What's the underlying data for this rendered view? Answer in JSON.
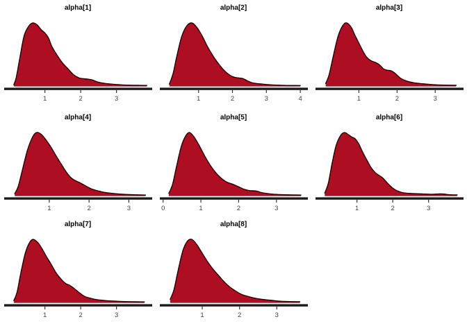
{
  "figure": {
    "background": "#ffffff"
  },
  "chart_data": {
    "type": "area",
    "subtype": "density-grid",
    "description": "Grid of 8 posterior density plots (MCMC parameter estimates), right-skewed unimodal distributions peaking near 0.7",
    "layout": {
      "grid_rows": 3,
      "grid_cols": 3,
      "empty_cells": [
        "row3-col3"
      ],
      "legend": "none",
      "grid_lines": "off",
      "y_axis": "none"
    },
    "style": {
      "fill_color": "#AE0E22",
      "outline_color": "#000000",
      "axis_bar_color": "#1A1A1A",
      "tick_color": "#333333",
      "tick_label_color": "#404040",
      "title_color": "#000000"
    },
    "panels": [
      {
        "title": "alpha[1]",
        "ticks": [
          1,
          2,
          3
        ],
        "axis_min": -0.1,
        "axis_max": 3.9,
        "curve": [
          [
            0.13,
            0.02
          ],
          [
            0.2,
            0.14
          ],
          [
            0.3,
            0.45
          ],
          [
            0.42,
            0.8
          ],
          [
            0.55,
            0.95
          ],
          [
            0.66,
            1.0
          ],
          [
            0.78,
            0.97
          ],
          [
            0.9,
            0.89
          ],
          [
            1.0,
            0.84
          ],
          [
            1.1,
            0.76
          ],
          [
            1.2,
            0.62
          ],
          [
            1.35,
            0.48
          ],
          [
            1.5,
            0.36
          ],
          [
            1.65,
            0.27
          ],
          [
            1.8,
            0.18
          ],
          [
            1.95,
            0.13
          ],
          [
            2.1,
            0.115
          ],
          [
            2.3,
            0.1
          ],
          [
            2.5,
            0.06
          ],
          [
            2.7,
            0.04
          ],
          [
            3.0,
            0.025
          ],
          [
            3.3,
            0.015
          ],
          [
            3.6,
            0.012
          ],
          [
            3.85,
            0.01
          ]
        ]
      },
      {
        "title": "alpha[2]",
        "ticks": [
          1,
          2,
          3,
          4
        ],
        "axis_min": -0.1,
        "axis_max": 4.12,
        "curve": [
          [
            0.14,
            0.03
          ],
          [
            0.25,
            0.2
          ],
          [
            0.35,
            0.45
          ],
          [
            0.5,
            0.78
          ],
          [
            0.65,
            0.95
          ],
          [
            0.8,
            1.0
          ],
          [
            0.95,
            0.93
          ],
          [
            1.1,
            0.8
          ],
          [
            1.25,
            0.64
          ],
          [
            1.4,
            0.5
          ],
          [
            1.55,
            0.38
          ],
          [
            1.7,
            0.28
          ],
          [
            1.85,
            0.2
          ],
          [
            2.0,
            0.15
          ],
          [
            2.15,
            0.13
          ],
          [
            2.3,
            0.12
          ],
          [
            2.45,
            0.08
          ],
          [
            2.6,
            0.05
          ],
          [
            2.8,
            0.035
          ],
          [
            3.0,
            0.025
          ],
          [
            3.3,
            0.015
          ],
          [
            3.6,
            0.01
          ],
          [
            4.0,
            0.008
          ]
        ]
      },
      {
        "title": "alpha[3]",
        "ticks": [
          1,
          2,
          3
        ],
        "axis_min": -0.1,
        "axis_max": 3.65,
        "curve": [
          [
            0.13,
            0.04
          ],
          [
            0.22,
            0.18
          ],
          [
            0.32,
            0.45
          ],
          [
            0.45,
            0.78
          ],
          [
            0.58,
            0.96
          ],
          [
            0.68,
            1.0
          ],
          [
            0.8,
            0.93
          ],
          [
            0.9,
            0.8
          ],
          [
            1.0,
            0.68
          ],
          [
            1.1,
            0.56
          ],
          [
            1.2,
            0.46
          ],
          [
            1.32,
            0.4
          ],
          [
            1.45,
            0.37
          ],
          [
            1.55,
            0.33
          ],
          [
            1.65,
            0.27
          ],
          [
            1.75,
            0.25
          ],
          [
            1.85,
            0.24
          ],
          [
            1.95,
            0.2
          ],
          [
            2.1,
            0.12
          ],
          [
            2.25,
            0.08
          ],
          [
            2.45,
            0.05
          ],
          [
            2.7,
            0.035
          ],
          [
            3.0,
            0.02
          ],
          [
            3.25,
            0.015
          ],
          [
            3.55,
            0.012
          ]
        ]
      },
      {
        "title": "alpha[4]",
        "ticks": [
          1,
          2,
          3
        ],
        "axis_min": -0.1,
        "axis_max": 3.5,
        "curve": [
          [
            0.13,
            0.03
          ],
          [
            0.22,
            0.15
          ],
          [
            0.32,
            0.4
          ],
          [
            0.45,
            0.72
          ],
          [
            0.58,
            0.93
          ],
          [
            0.68,
            1.0
          ],
          [
            0.8,
            0.97
          ],
          [
            0.92,
            0.88
          ],
          [
            1.05,
            0.76
          ],
          [
            1.18,
            0.62
          ],
          [
            1.3,
            0.5
          ],
          [
            1.42,
            0.38
          ],
          [
            1.52,
            0.3
          ],
          [
            1.62,
            0.25
          ],
          [
            1.75,
            0.21
          ],
          [
            1.9,
            0.16
          ],
          [
            2.05,
            0.11
          ],
          [
            2.2,
            0.08
          ],
          [
            2.4,
            0.05
          ],
          [
            2.6,
            0.035
          ],
          [
            2.9,
            0.02
          ],
          [
            3.2,
            0.013
          ],
          [
            3.42,
            0.01
          ]
        ]
      },
      {
        "title": "alpha[5]",
        "ticks": [
          0,
          1,
          2,
          3
        ],
        "axis_min": -0.05,
        "axis_max": 3.74,
        "curve": [
          [
            0.15,
            0.035
          ],
          [
            0.25,
            0.18
          ],
          [
            0.35,
            0.45
          ],
          [
            0.48,
            0.78
          ],
          [
            0.6,
            0.95
          ],
          [
            0.7,
            1.0
          ],
          [
            0.82,
            0.93
          ],
          [
            0.95,
            0.8
          ],
          [
            1.1,
            0.63
          ],
          [
            1.25,
            0.48
          ],
          [
            1.4,
            0.36
          ],
          [
            1.55,
            0.27
          ],
          [
            1.7,
            0.21
          ],
          [
            1.85,
            0.18
          ],
          [
            2.0,
            0.14
          ],
          [
            2.15,
            0.1
          ],
          [
            2.3,
            0.08
          ],
          [
            2.45,
            0.075
          ],
          [
            2.6,
            0.05
          ],
          [
            2.8,
            0.03
          ],
          [
            3.0,
            0.02
          ],
          [
            3.3,
            0.013
          ],
          [
            3.65,
            0.01
          ]
        ]
      },
      {
        "title": "alpha[6]",
        "ticks": [
          1,
          2,
          3
        ],
        "axis_min": -0.12,
        "axis_max": 3.88,
        "curve": [
          [
            0.1,
            0.04
          ],
          [
            0.2,
            0.2
          ],
          [
            0.3,
            0.5
          ],
          [
            0.42,
            0.8
          ],
          [
            0.55,
            0.96
          ],
          [
            0.65,
            1.0
          ],
          [
            0.75,
            0.97
          ],
          [
            0.85,
            0.93
          ],
          [
            0.95,
            0.9
          ],
          [
            1.05,
            0.82
          ],
          [
            1.15,
            0.7
          ],
          [
            1.28,
            0.56
          ],
          [
            1.4,
            0.44
          ],
          [
            1.52,
            0.36
          ],
          [
            1.62,
            0.32
          ],
          [
            1.72,
            0.28
          ],
          [
            1.85,
            0.2
          ],
          [
            2.0,
            0.12
          ],
          [
            2.15,
            0.07
          ],
          [
            2.3,
            0.045
          ],
          [
            2.5,
            0.035
          ],
          [
            2.8,
            0.028
          ],
          [
            3.1,
            0.022
          ],
          [
            3.35,
            0.028
          ],
          [
            3.6,
            0.015
          ],
          [
            3.8,
            0.012
          ]
        ]
      },
      {
        "title": "alpha[7]",
        "ticks": [
          1,
          2,
          3
        ],
        "axis_min": -0.1,
        "axis_max": 3.9,
        "curve": [
          [
            0.13,
            0.03
          ],
          [
            0.22,
            0.16
          ],
          [
            0.32,
            0.45
          ],
          [
            0.45,
            0.78
          ],
          [
            0.57,
            0.95
          ],
          [
            0.67,
            1.0
          ],
          [
            0.8,
            0.95
          ],
          [
            0.92,
            0.85
          ],
          [
            1.05,
            0.72
          ],
          [
            1.18,
            0.6
          ],
          [
            1.3,
            0.48
          ],
          [
            1.45,
            0.37
          ],
          [
            1.58,
            0.3
          ],
          [
            1.7,
            0.27
          ],
          [
            1.82,
            0.22
          ],
          [
            1.95,
            0.16
          ],
          [
            2.1,
            0.1
          ],
          [
            2.25,
            0.07
          ],
          [
            2.45,
            0.045
          ],
          [
            2.7,
            0.03
          ],
          [
            3.0,
            0.02
          ],
          [
            3.3,
            0.014
          ],
          [
            3.78,
            0.01
          ]
        ]
      },
      {
        "title": "alpha[8]",
        "ticks": [
          1,
          2,
          3
        ],
        "axis_min": -0.1,
        "axis_max": 3.74,
        "curve": [
          [
            0.14,
            0.05
          ],
          [
            0.24,
            0.2
          ],
          [
            0.35,
            0.5
          ],
          [
            0.48,
            0.82
          ],
          [
            0.6,
            0.97
          ],
          [
            0.72,
            1.0
          ],
          [
            0.85,
            0.92
          ],
          [
            1.0,
            0.78
          ],
          [
            1.15,
            0.64
          ],
          [
            1.3,
            0.52
          ],
          [
            1.45,
            0.42
          ],
          [
            1.6,
            0.32
          ],
          [
            1.75,
            0.24
          ],
          [
            1.9,
            0.18
          ],
          [
            2.05,
            0.13
          ],
          [
            2.2,
            0.1
          ],
          [
            2.4,
            0.07
          ],
          [
            2.6,
            0.05
          ],
          [
            2.85,
            0.035
          ],
          [
            3.1,
            0.02
          ],
          [
            3.35,
            0.015
          ],
          [
            3.62,
            0.012
          ]
        ]
      }
    ]
  }
}
